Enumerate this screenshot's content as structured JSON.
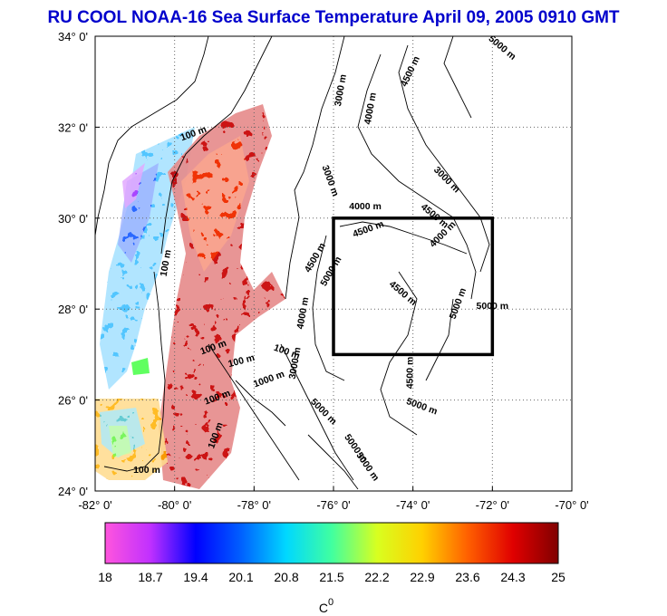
{
  "title": "RU COOL  NOAA-16 Sea Surface Temperature April 09, 2005 0910 GMT",
  "colors": {
    "title": "#0000cc",
    "box": "#000000"
  },
  "axes": {
    "lon_min": -82,
    "lon_max": -70,
    "lat_min": 24,
    "lat_max": 34,
    "x_ticks": [
      {
        "value": -82,
        "label": "-82° 0'"
      },
      {
        "value": -80,
        "label": "-80° 0'"
      },
      {
        "value": -78,
        "label": "-78° 0'"
      },
      {
        "value": -76,
        "label": "-76° 0'"
      },
      {
        "value": -74,
        "label": "-74° 0'"
      },
      {
        "value": -72,
        "label": "-72° 0'"
      },
      {
        "value": -70,
        "label": "-70° 0'"
      }
    ],
    "y_ticks": [
      {
        "value": 34,
        "label": "34° 0'"
      },
      {
        "value": 32,
        "label": "32° 0'"
      },
      {
        "value": 30,
        "label": "30° 0'"
      },
      {
        "value": 28,
        "label": "28° 0'"
      },
      {
        "value": 26,
        "label": "26° 0'"
      },
      {
        "value": 24,
        "label": "24° 0'"
      }
    ],
    "grid": "dotted"
  },
  "study_box": {
    "lon_min": -76,
    "lon_max": -72,
    "lat_min": 27,
    "lat_max": 30
  },
  "contour_labels": [
    {
      "text": "100 m",
      "lon": -79.5,
      "lat": 31.8,
      "rot": -20
    },
    {
      "text": "100 m",
      "lon": -80.15,
      "lat": 29.0,
      "rot": -80
    },
    {
      "text": "100 m",
      "lon": -79.0,
      "lat": 27.1,
      "rot": -20
    },
    {
      "text": "100 m",
      "lon": -78.3,
      "lat": 26.8,
      "rot": -15
    },
    {
      "text": "100 m",
      "lon": -78.9,
      "lat": 26.0,
      "rot": -20
    },
    {
      "text": "100 m",
      "lon": -78.9,
      "lat": 25.2,
      "rot": -70
    },
    {
      "text": "100 m",
      "lon": -80.7,
      "lat": 24.4,
      "rot": 0
    },
    {
      "text": "100 m",
      "lon": -77.2,
      "lat": 27.0,
      "rot": 20
    },
    {
      "text": "1000 m",
      "lon": -77.6,
      "lat": 26.4,
      "rot": -20
    },
    {
      "text": "3000 m",
      "lon": -76.15,
      "lat": 30.8,
      "rot": 70
    },
    {
      "text": "3000 m",
      "lon": -75.75,
      "lat": 32.8,
      "rot": -80
    },
    {
      "text": "4000 m",
      "lon": -75.0,
      "lat": 32.4,
      "rot": -80
    },
    {
      "text": "4500 m",
      "lon": -74.0,
      "lat": 33.2,
      "rot": -65
    },
    {
      "text": "5000 m",
      "lon": -71.8,
      "lat": 33.7,
      "rot": 40
    },
    {
      "text": "4000 m",
      "lon": -75.2,
      "lat": 30.2,
      "rot": 0
    },
    {
      "text": "4500 m",
      "lon": -75.1,
      "lat": 29.7,
      "rot": -20
    },
    {
      "text": "4000 m",
      "lon": -73.2,
      "lat": 29.6,
      "rot": -45
    },
    {
      "text": "3000 m",
      "lon": -73.2,
      "lat": 30.8,
      "rot": 45
    },
    {
      "text": "4500 m",
      "lon": -73.5,
      "lat": 30.0,
      "rot": 40
    },
    {
      "text": "4500 m",
      "lon": -76.4,
      "lat": 29.1,
      "rot": -60
    },
    {
      "text": "5000 m",
      "lon": -76.0,
      "lat": 28.8,
      "rot": -60
    },
    {
      "text": "4000 m",
      "lon": -76.7,
      "lat": 27.9,
      "rot": -80
    },
    {
      "text": "3000 m",
      "lon": -76.9,
      "lat": 26.8,
      "rot": -80
    },
    {
      "text": "4500 m",
      "lon": -74.3,
      "lat": 28.3,
      "rot": 40
    },
    {
      "text": "5000 m",
      "lon": -72.8,
      "lat": 28.1,
      "rot": -70
    },
    {
      "text": "5000 m",
      "lon": -72.0,
      "lat": 28.0,
      "rot": 0
    },
    {
      "text": "4500 m",
      "lon": -74.0,
      "lat": 26.6,
      "rot": -90
    },
    {
      "text": "5000 m",
      "lon": -73.8,
      "lat": 25.8,
      "rot": 20
    },
    {
      "text": "5000 m",
      "lon": -76.3,
      "lat": 25.7,
      "rot": 45
    },
    {
      "text": "5000 m",
      "lon": -75.5,
      "lat": 24.9,
      "rot": 55
    },
    {
      "text": "5000 m",
      "lon": -75.2,
      "lat": 24.5,
      "rot": 55
    }
  ],
  "colorbar": {
    "min": 18,
    "max": 25,
    "tick_labels": [
      "18",
      "18.7",
      "19.4",
      "20.1",
      "20.8",
      "21.5",
      "22.2",
      "22.9",
      "23.6",
      "24.3",
      "25"
    ],
    "unit_label": "C",
    "unit_superscript": "0",
    "stops": [
      "#ff55dd",
      "#c030ff",
      "#0000ff",
      "#0060ff",
      "#00d8ff",
      "#40ffa0",
      "#d8ff20",
      "#ffd000",
      "#ff6000",
      "#e00000",
      "#800000"
    ]
  }
}
